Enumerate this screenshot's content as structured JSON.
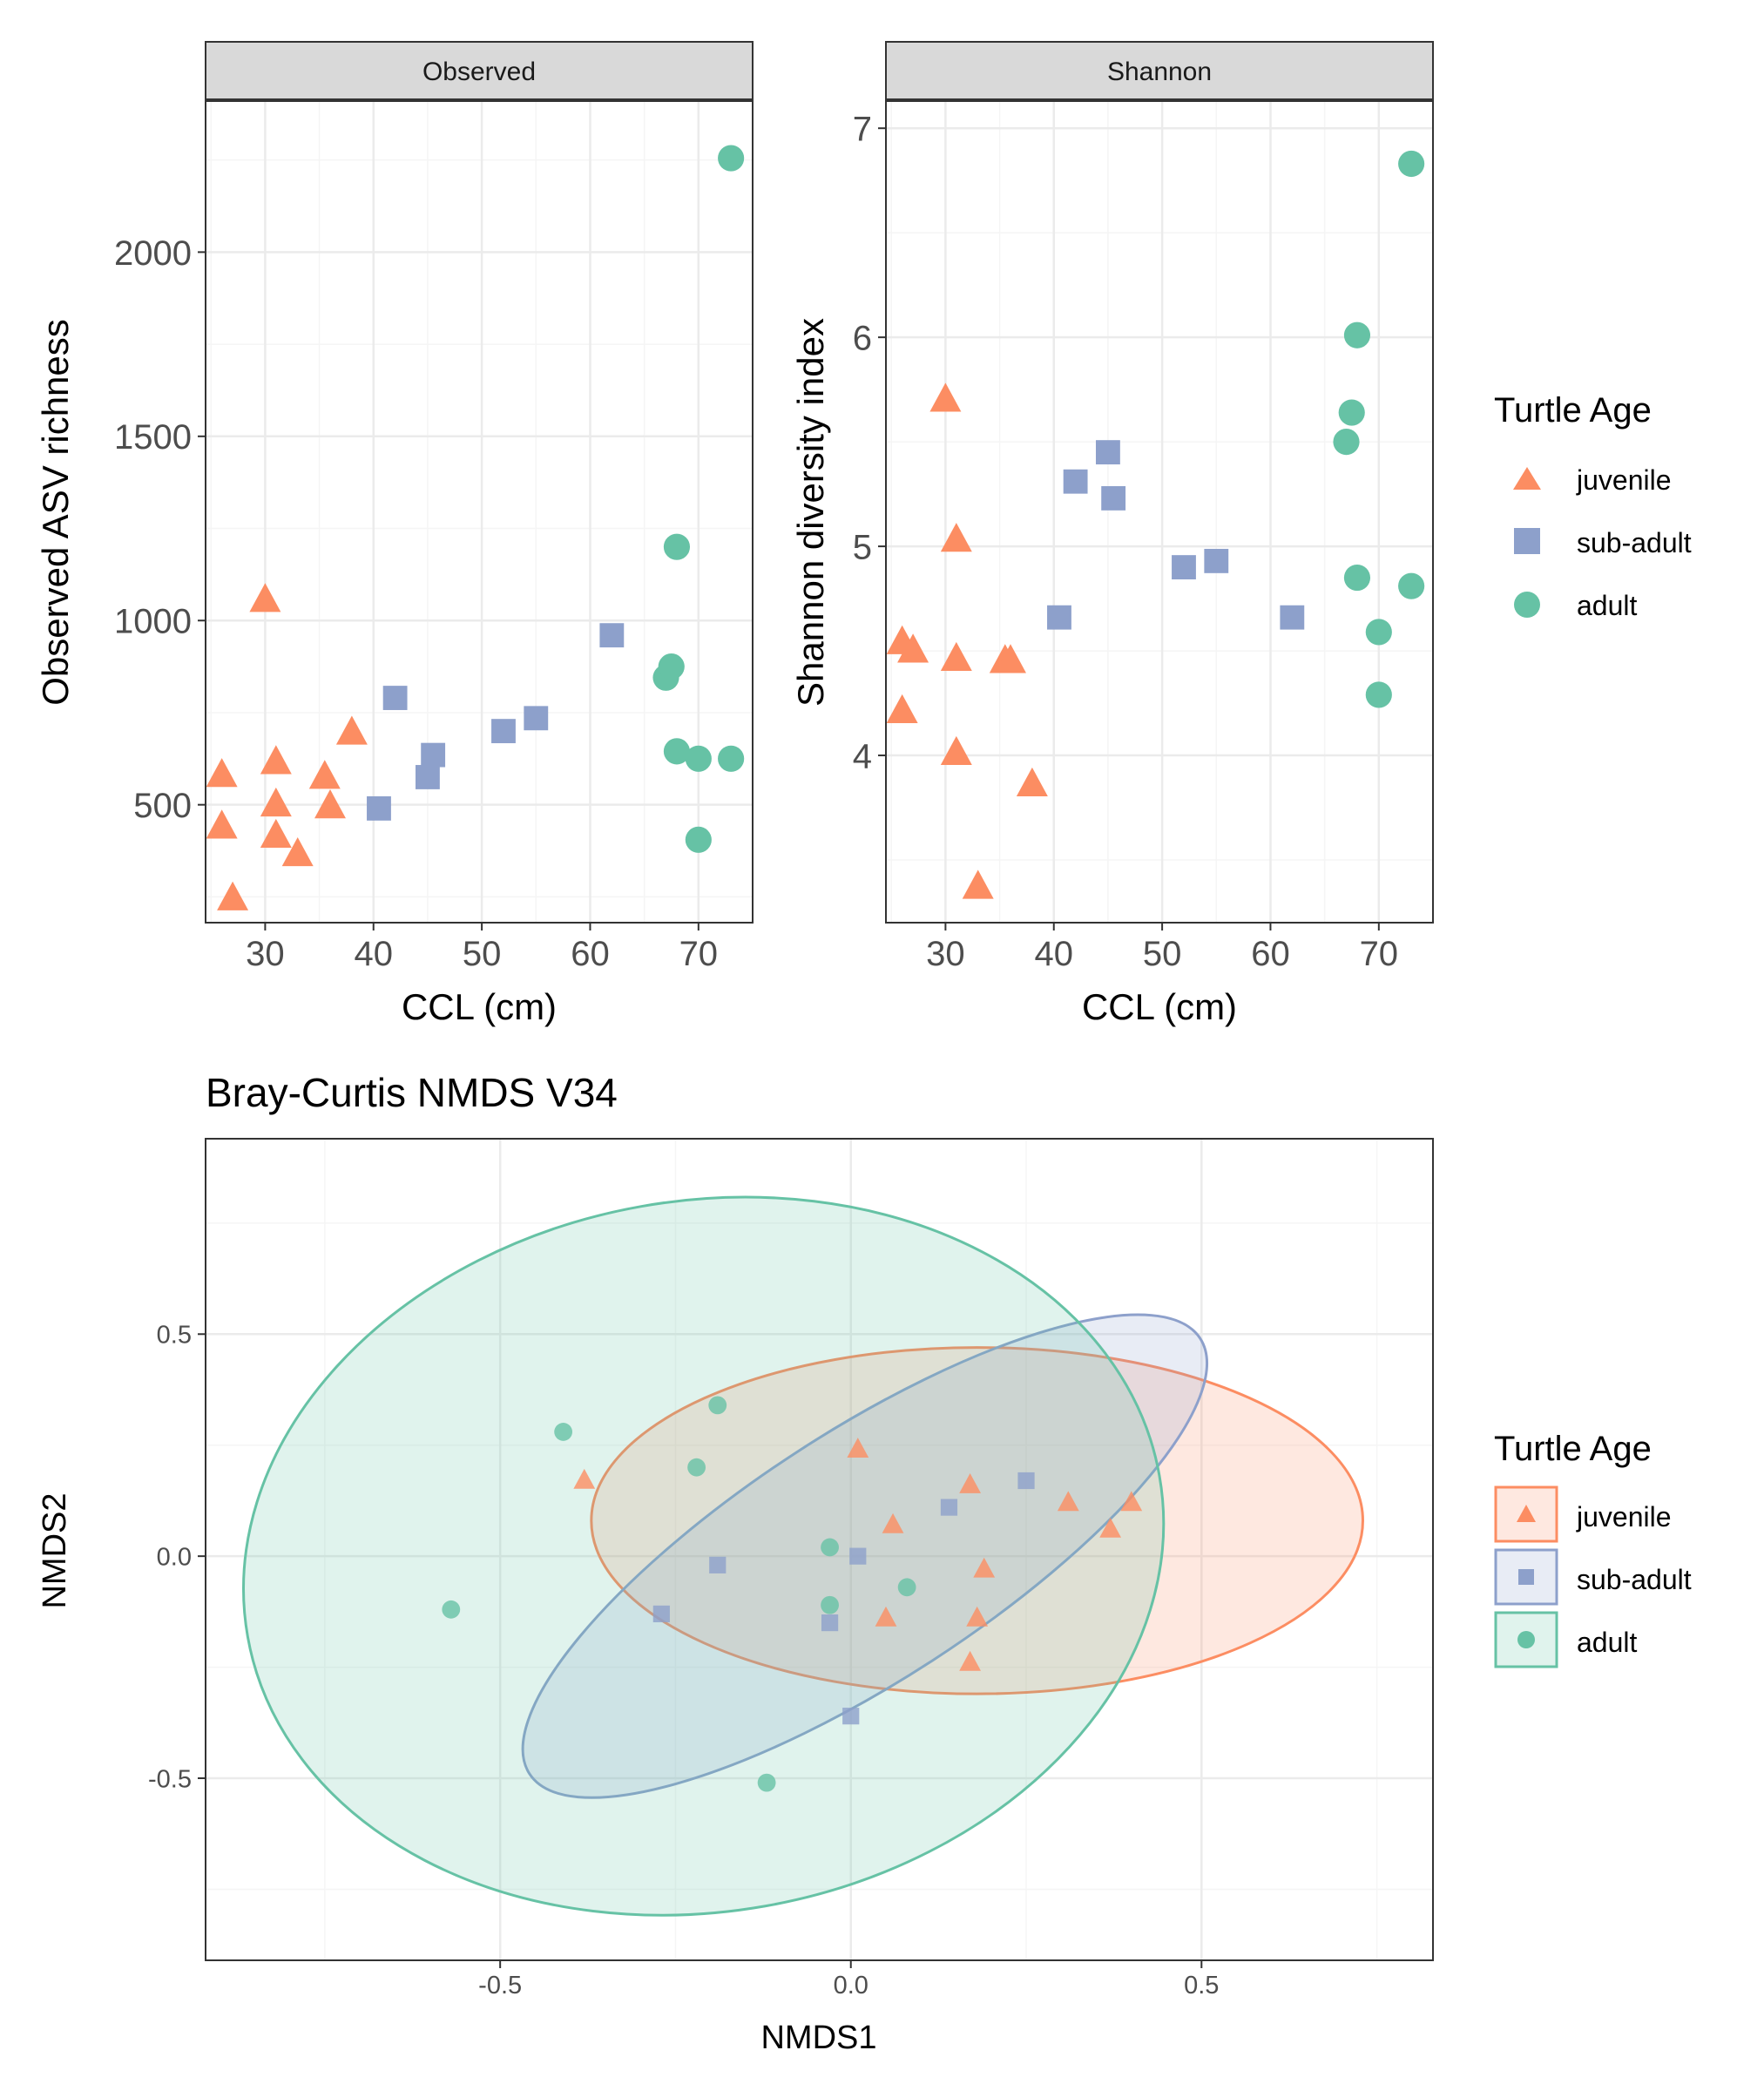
{
  "colors": {
    "juvenile": "#fc8d62",
    "sub-adult": "#8da0cb",
    "adult": "#66c2a5",
    "grid_major": "#ebebeb",
    "grid_minor": "#f5f5f5",
    "strip_fill": "#d9d9d9",
    "panel_border": "#333333"
  },
  "chart_data": [
    {
      "type": "scatter",
      "facet": "Observed",
      "xlabel": "CCL (cm)",
      "ylabel": "Observed ASV richness",
      "xlim": [
        24.5,
        75
      ],
      "ylim": [
        180,
        2410
      ],
      "xticks": [
        30,
        40,
        50,
        60,
        70
      ],
      "yticks": [
        500,
        1000,
        1500,
        2000
      ],
      "grid": true,
      "series": [
        {
          "name": "juvenile",
          "shape": "triangle",
          "points": [
            [
              26,
              580
            ],
            [
              26,
              440
            ],
            [
              27,
              245
            ],
            [
              30,
              1055
            ],
            [
              31,
              615
            ],
            [
              31,
              500
            ],
            [
              31,
              415
            ],
            [
              33,
              365
            ],
            [
              35.5,
              575
            ],
            [
              36,
              495
            ],
            [
              38,
              695
            ]
          ]
        },
        {
          "name": "sub-adult",
          "shape": "square",
          "points": [
            [
              40.5,
              490
            ],
            [
              42,
              790
            ],
            [
              45,
              575
            ],
            [
              45.5,
              635
            ],
            [
              52,
              700
            ],
            [
              55,
              735
            ],
            [
              62,
              960
            ]
          ]
        },
        {
          "name": "adult",
          "shape": "circle",
          "points": [
            [
              67,
              845
            ],
            [
              67.5,
              875
            ],
            [
              68,
              1200
            ],
            [
              68,
              645
            ],
            [
              70,
              625
            ],
            [
              70,
              405
            ],
            [
              73,
              2255
            ],
            [
              73,
              625
            ]
          ]
        }
      ]
    },
    {
      "type": "scatter",
      "facet": "Shannon",
      "xlabel": "CCL (cm)",
      "ylabel": "Shannon diversity index",
      "xlim": [
        24.5,
        75
      ],
      "ylim": [
        3.2,
        7.13
      ],
      "xticks": [
        30,
        40,
        50,
        60,
        70
      ],
      "yticks": [
        4,
        5,
        6,
        7
      ],
      "grid": true,
      "series": [
        {
          "name": "juvenile",
          "shape": "triangle",
          "points": [
            [
              26,
              4.54
            ],
            [
              26,
              4.21
            ],
            [
              27,
              4.5
            ],
            [
              30,
              5.7
            ],
            [
              31,
              5.03
            ],
            [
              31,
              4.46
            ],
            [
              31,
              4.01
            ],
            [
              33,
              3.37
            ],
            [
              35.5,
              4.45
            ],
            [
              36,
              4.45
            ],
            [
              38,
              3.86
            ]
          ]
        },
        {
          "name": "sub-adult",
          "shape": "square",
          "points": [
            [
              40.5,
              4.66
            ],
            [
              42,
              5.31
            ],
            [
              45,
              5.45
            ],
            [
              45.5,
              5.23
            ],
            [
              52,
              4.9
            ],
            [
              55,
              4.93
            ],
            [
              62,
              4.66
            ]
          ]
        },
        {
          "name": "adult",
          "shape": "circle",
          "points": [
            [
              67,
              5.5
            ],
            [
              67.5,
              5.64
            ],
            [
              68,
              6.01
            ],
            [
              68,
              4.85
            ],
            [
              70,
              4.59
            ],
            [
              70,
              4.29
            ],
            [
              73,
              6.83
            ],
            [
              73,
              4.81
            ]
          ]
        }
      ]
    },
    {
      "type": "scatter",
      "title": "Bray-Curtis NMDS V34",
      "xlabel": "NMDS1",
      "ylabel": "NMDS2",
      "xlim": [
        -0.92,
        0.83
      ],
      "ylim": [
        -0.91,
        0.94
      ],
      "xticks": [
        -0.5,
        0.0,
        0.5
      ],
      "xtick_labels": [
        "-0.5",
        "0.0",
        "0.5"
      ],
      "yticks": [
        -0.5,
        0.0,
        0.5
      ],
      "ytick_labels": [
        "-0.5",
        "0.0",
        "0.5"
      ],
      "grid": true,
      "ellipses": [
        {
          "name": "juvenile",
          "center": [
            0.18,
            0.08
          ],
          "half_width": 0.55,
          "half_height": 0.39,
          "rotation_deg": 0
        },
        {
          "name": "sub-adult",
          "center": [
            0.02,
            0.0
          ],
          "half_width": 0.57,
          "half_height": 0.28,
          "rotation_deg": 33
        },
        {
          "name": "adult",
          "center": [
            -0.21,
            0.0
          ],
          "half_width": 0.66,
          "half_height": 0.8,
          "rotation_deg": 10
        }
      ],
      "series": [
        {
          "name": "juvenile",
          "shape": "triangle",
          "points": [
            [
              -0.38,
              0.17
            ],
            [
              0.01,
              0.24
            ],
            [
              0.06,
              0.07
            ],
            [
              0.05,
              -0.14
            ],
            [
              0.17,
              0.16
            ],
            [
              0.19,
              -0.03
            ],
            [
              0.18,
              -0.14
            ],
            [
              0.17,
              -0.24
            ],
            [
              0.31,
              0.12
            ],
            [
              0.37,
              0.06
            ],
            [
              0.4,
              0.12
            ]
          ]
        },
        {
          "name": "sub-adult",
          "shape": "square",
          "points": [
            [
              -0.19,
              -0.02
            ],
            [
              -0.27,
              -0.13
            ],
            [
              -0.03,
              -0.15
            ],
            [
              0.01,
              0.0
            ],
            [
              0.14,
              0.11
            ],
            [
              0.25,
              0.17
            ],
            [
              0.0,
              -0.36
            ]
          ]
        },
        {
          "name": "adult",
          "shape": "circle",
          "points": [
            [
              -0.41,
              0.28
            ],
            [
              -0.19,
              0.34
            ],
            [
              -0.22,
              0.2
            ],
            [
              -0.57,
              -0.12
            ],
            [
              -0.03,
              0.02
            ],
            [
              -0.03,
              -0.11
            ],
            [
              0.08,
              -0.07
            ],
            [
              -0.12,
              -0.51
            ]
          ]
        }
      ]
    }
  ],
  "strips": {
    "left": "Observed",
    "right": "Shannon"
  },
  "legends": [
    {
      "title": "Turtle Age",
      "entries": [
        "juvenile",
        "sub-adult",
        "adult"
      ]
    },
    {
      "title": "Turtle Age",
      "entries": [
        "juvenile",
        "sub-adult",
        "adult"
      ]
    }
  ]
}
